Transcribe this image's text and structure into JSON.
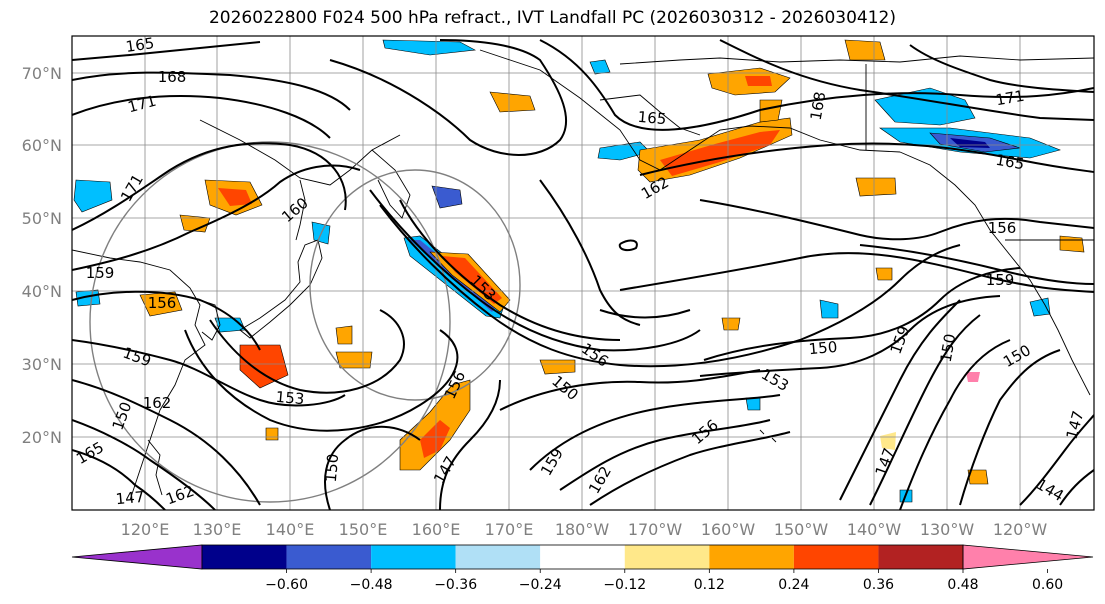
{
  "title": "2026022800 F024 500 hPa refract., IVT Landfall PC (2026030312 - 2026030412)",
  "lat_labels": [
    "70°N",
    "60°N",
    "50°N",
    "40°N",
    "30°N",
    "20°N"
  ],
  "lon_labels": [
    "120°E",
    "130°E",
    "140°E",
    "150°E",
    "160°E",
    "170°E",
    "180°W",
    "170°W",
    "160°W",
    "150°W",
    "140°W",
    "130°W",
    "120°W"
  ],
  "colorbar": {
    "colors": [
      "#9932cc",
      "#00008b",
      "#3a5bd0",
      "#00bfff",
      "#b0e0f6",
      "#ffffff",
      "#ffe88a",
      "#ffa500",
      "#ff4500",
      "#b22222",
      "#ff80ab"
    ],
    "ticks": [
      "−0.60",
      "−0.48",
      "−0.36",
      "−0.24",
      "−0.12",
      "0.12",
      "0.24",
      "0.36",
      "0.48",
      "0.60"
    ],
    "extend": "both"
  },
  "contour_labels": [
    "165",
    "168",
    "171",
    "165",
    "168",
    "171",
    "165",
    "171",
    "160",
    "159",
    "156",
    "159",
    "162",
    "150",
    "153",
    "153",
    "156",
    "150",
    "147",
    "147",
    "162",
    "159",
    "162",
    "156",
    "150",
    "153",
    "156",
    "147",
    "150",
    "150",
    "159",
    "150",
    "159",
    "156",
    "147",
    "144",
    "162",
    "165"
  ]
}
